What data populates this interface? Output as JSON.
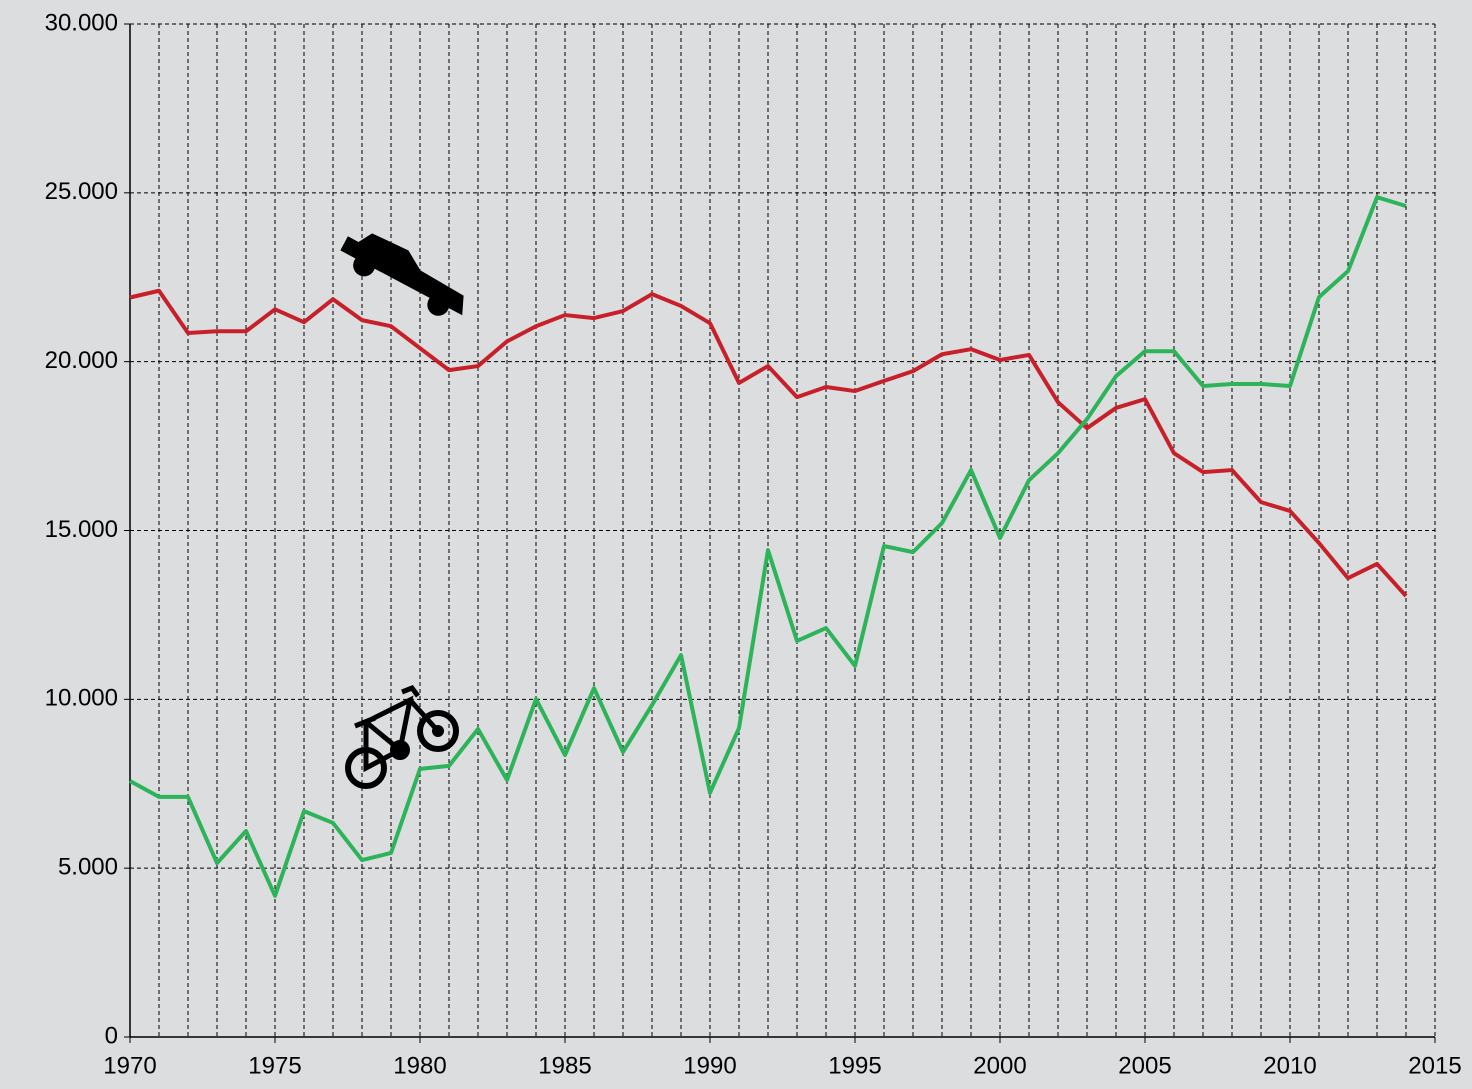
{
  "chart_data": {
    "type": "line",
    "x": [
      1970,
      1971,
      1972,
      1973,
      1974,
      1975,
      1976,
      1977,
      1978,
      1979,
      1980,
      1981,
      1982,
      1983,
      1984,
      1985,
      1986,
      1987,
      1988,
      1989,
      1990,
      1991,
      1992,
      1993,
      1994,
      1995,
      1996,
      1997,
      1998,
      1999,
      2000,
      2001,
      2002,
      2003,
      2004,
      2005,
      2006,
      2007,
      2008,
      2009,
      2010,
      2011,
      2012,
      2013,
      2014
    ],
    "series": [
      {
        "color": "#c8202a",
        "values": [
          21900,
          22100,
          20850,
          20900,
          20900,
          21550,
          21170,
          21850,
          21230,
          21050,
          20400,
          19750,
          19870,
          20600,
          21050,
          21380,
          21290,
          21500,
          22000,
          21650,
          21140,
          19370,
          19870,
          18950,
          19250,
          19130,
          19430,
          19720,
          20220,
          20370,
          20050,
          20200,
          18800,
          18030,
          18630,
          18890,
          17290,
          16730,
          16790,
          15840,
          15580,
          14630,
          13590,
          14010,
          13060
        ]
      },
      {
        "color": "#2db35a",
        "values": [
          7580,
          7110,
          7110,
          5150,
          6100,
          4180,
          6690,
          6340,
          5240,
          5450,
          7940,
          8030,
          9120,
          7610,
          10010,
          8350,
          10330,
          8440,
          9830,
          11310,
          7230,
          9150,
          14420,
          11730,
          12110,
          10990,
          14540,
          14360,
          15220,
          16790,
          14780,
          16490,
          17290,
          18300,
          19570,
          20310,
          20310,
          19280,
          19340,
          19340,
          19280,
          21910,
          22680,
          24870,
          24610
        ]
      }
    ],
    "xlim": [
      1970,
      2015
    ],
    "xticks": [
      1970,
      1975,
      1980,
      1985,
      1990,
      1995,
      2000,
      2005,
      2010,
      2015
    ],
    "ylim": [
      0,
      30000
    ],
    "yticks": [
      0,
      {
        "value": 5000,
        "label": "5.000"
      },
      {
        "value": 10000,
        "label": "10.000"
      },
      {
        "value": 15000,
        "label": "15.000"
      },
      {
        "value": 20000,
        "label": "20.000"
      },
      {
        "value": 25000,
        "label": "25.000"
      },
      {
        "value": 30000,
        "label": "30.000"
      }
    ],
    "grid": true
  }
}
